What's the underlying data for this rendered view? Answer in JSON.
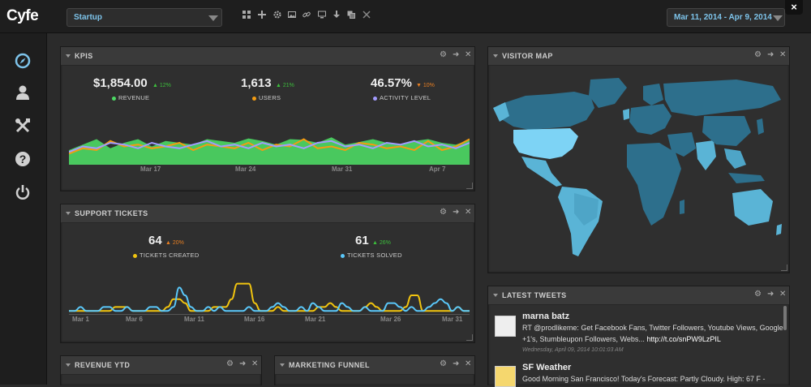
{
  "app": {
    "logo": "Cyfe"
  },
  "header": {
    "dashboard_value": "Startup",
    "toolbar_icons": [
      "grid-icon",
      "plus-icon",
      "gear-icon",
      "image-icon",
      "link-icon",
      "monitor-icon",
      "download-icon",
      "copy-icon",
      "close-icon"
    ],
    "date_range": "Mar 11, 2014 - Apr 9, 2014",
    "close_label": "×"
  },
  "sidebar": {
    "icons": [
      "compass-icon",
      "user-icon",
      "tools-icon",
      "help-icon",
      "power-icon"
    ]
  },
  "colors": {
    "accent": "#7dc3ea",
    "green": "#4cd964",
    "orange": "#f39c12",
    "purple": "#a29bfe",
    "yellow": "#f1c40f",
    "cyan": "#5ac8fa",
    "up": "#3cbf3c",
    "down": "#e67e22"
  },
  "kpis": {
    "title": "KPIS",
    "metrics": [
      {
        "value": "$1,854.00",
        "delta": "▲ 12%",
        "label": "REVENUE",
        "color": "#4cd964",
        "delta_color": "#3cbf3c"
      },
      {
        "value": "1,613",
        "delta": "▲ 21%",
        "label": "USERS",
        "color": "#f39c12",
        "delta_color": "#3cbf3c"
      },
      {
        "value": "46.57%",
        "delta": "▼ 10%",
        "label": "ACTIVITY LEVEL",
        "color": "#a29bfe",
        "delta_color": "#e67e22"
      }
    ],
    "ticks": [
      "Mar 17",
      "Mar 24",
      "Mar 31",
      "Apr 7"
    ]
  },
  "support": {
    "title": "SUPPORT TICKETS",
    "metrics": [
      {
        "value": "64",
        "delta": "▲ 20%",
        "label": "TICKETS CREATED",
        "color": "#f1c40f",
        "delta_color": "#e67e22"
      },
      {
        "value": "61",
        "delta": "▲ 26%",
        "label": "TICKETS SOLVED",
        "color": "#5ac8fa",
        "delta_color": "#3cbf3c"
      }
    ],
    "ticks": [
      "Mar 1",
      "Mar 6",
      "Mar 11",
      "Mar 16",
      "Mar 21",
      "Mar 26",
      "Mar 31"
    ]
  },
  "visitor_map": {
    "title": "VISITOR MAP"
  },
  "tweets": {
    "title": "LATEST TWEETS",
    "items": [
      {
        "user": "marna batz",
        "text": "RT @prodlikeme: Get Facebook Fans, Twitter Followers, Youtube Views, Google +1's, Stumbleupon Followers, Webs... ",
        "link": "http://t.co/snPW9LzPIL",
        "time": "Wednesday, April 09, 2014 10:01:03 AM"
      },
      {
        "user": "SF Weather",
        "text": "Good Morning San Francisco! Today's Forecast: Partly Cloudy. High: 67 F -"
      }
    ]
  },
  "revenue_ytd": {
    "title": "REVENUE YTD"
  },
  "marketing_funnel": {
    "title": "MARKETING FUNNEL"
  },
  "chart_data": [
    {
      "type": "area",
      "title": "KPIS",
      "xlabel": "",
      "ylabel": "",
      "x_ticks": [
        "Mar 17",
        "Mar 24",
        "Mar 31",
        "Apr 7"
      ],
      "ylim": [
        0,
        100
      ],
      "series": [
        {
          "name": "REVENUE",
          "type": "area",
          "color": "#4cd964",
          "values": [
            40,
            55,
            70,
            45,
            60,
            70,
            50,
            65,
            60,
            55,
            70,
            65,
            60,
            72,
            65,
            55,
            70,
            68,
            60,
            75,
            55,
            62,
            70,
            60,
            55,
            65,
            70,
            60,
            55,
            68
          ]
        },
        {
          "name": "USERS",
          "type": "line",
          "color": "#f39c12",
          "values": [
            30,
            45,
            40,
            65,
            50,
            55,
            45,
            50,
            60,
            40,
            55,
            50,
            45,
            60,
            40,
            55,
            50,
            70,
            45,
            50,
            40,
            60,
            55,
            45,
            50,
            40,
            65,
            40,
            50,
            70
          ]
        },
        {
          "name": "ACTIVITY LEVEL",
          "type": "line",
          "color": "#a29bfe",
          "values": [
            35,
            50,
            45,
            60,
            55,
            45,
            60,
            50,
            45,
            55,
            65,
            50,
            55,
            45,
            60,
            50,
            55,
            45,
            60,
            65,
            50,
            55,
            45,
            60,
            55,
            65,
            50,
            55,
            45,
            60
          ]
        }
      ]
    },
    {
      "type": "line",
      "title": "SUPPORT TICKETS",
      "xlabel": "",
      "ylabel": "",
      "x_ticks": [
        "Mar 1",
        "Mar 6",
        "Mar 11",
        "Mar 16",
        "Mar 21",
        "Mar 26",
        "Mar 31"
      ],
      "ylim": [
        0,
        10
      ],
      "series": [
        {
          "name": "TICKETS CREATED",
          "color": "#f1c40f",
          "values": [
            1,
            1,
            1,
            1,
            1,
            1,
            1,
            1,
            2,
            2,
            2,
            1,
            1,
            1,
            1,
            1,
            1,
            2,
            4,
            4,
            3,
            1,
            1,
            1,
            1,
            2,
            2,
            2,
            4,
            8,
            8,
            8,
            3,
            1,
            1,
            1,
            2,
            1,
            1,
            1,
            1,
            1,
            1,
            2,
            2,
            3,
            2,
            1,
            1,
            1,
            1,
            2,
            3,
            2,
            1,
            1,
            1,
            1,
            2,
            5,
            5,
            1,
            1,
            1,
            1,
            1,
            1,
            2,
            1,
            1
          ]
        },
        {
          "name": "TICKETS SOLVED",
          "color": "#5ac8fa",
          "values": [
            1,
            1,
            2,
            1,
            1,
            1,
            2,
            2,
            1,
            1,
            2,
            1,
            1,
            1,
            2,
            2,
            1,
            1,
            2,
            7,
            5,
            2,
            1,
            1,
            2,
            1,
            2,
            1,
            1,
            1,
            1,
            2,
            1,
            1,
            1,
            2,
            3,
            2,
            1,
            1,
            2,
            1,
            3,
            2,
            1,
            1,
            1,
            3,
            2,
            1,
            1,
            2,
            1,
            1,
            1,
            3,
            3,
            2,
            1,
            2,
            1,
            1,
            2,
            3,
            4,
            3,
            1,
            2,
            1,
            1
          ]
        }
      ]
    }
  ]
}
